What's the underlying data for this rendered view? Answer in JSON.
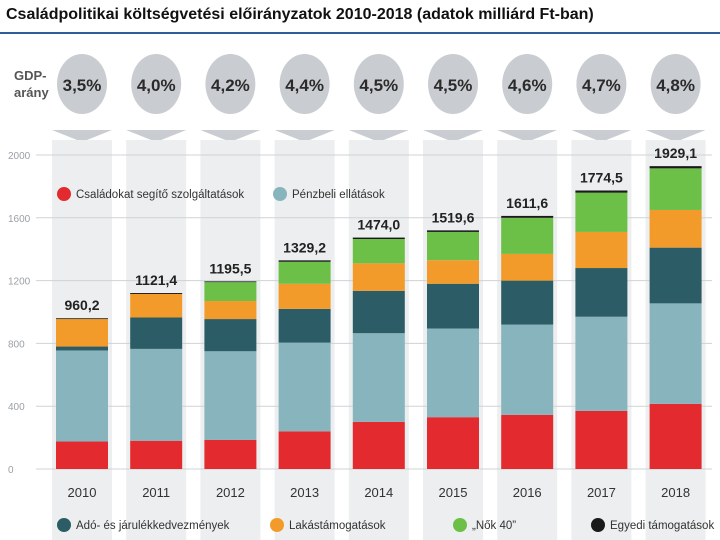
{
  "header": {
    "title": "Családpolitikai költségvetési előirányzatok  2010-2018 (adatok milliárd Ft-ban)"
  },
  "gdp": {
    "label_line1": "GDP-",
    "label_line2": "arány",
    "values": [
      "3,5%",
      "4,0%",
      "4,2%",
      "4,4%",
      "4,5%",
      "4,5%",
      "4,6%",
      "4,7%",
      "4,8%"
    ]
  },
  "colors": {
    "red": "#e32b2f",
    "teal": "#87b4bd",
    "dark": "#2c5d66",
    "orange": "#f39b2a",
    "green": "#6cbf47",
    "black": "#1a1a1a",
    "grid": "#cfd3d6",
    "pill": "#c9cdd1",
    "axis_text": "#9aa0a6",
    "column_bg": "#eceeef"
  },
  "chart_data": {
    "type": "bar",
    "stacked": true,
    "title": "Családpolitikai költségvetési előirányzatok  2010-2018 (adatok milliárd Ft-ban)",
    "xlabel": "",
    "ylabel": "",
    "ylim": [
      0,
      2000
    ],
    "yticks": [
      "0",
      "400",
      "800",
      "1200",
      "1600",
      "2000"
    ],
    "ytick_values": [
      0,
      400,
      800,
      1200,
      1600,
      2000
    ],
    "categories": [
      "2010",
      "2011",
      "2012",
      "2013",
      "2014",
      "2015",
      "2016",
      "2017",
      "2018"
    ],
    "totals": [
      960.2,
      1121.4,
      1195.5,
      1329.2,
      1474.0,
      1519.6,
      1611.6,
      1774.5,
      1929.1
    ],
    "total_labels": [
      "960,2",
      "1121,4",
      "1195,5",
      "1329,2",
      "1474,0",
      "1519,6",
      "1611,6",
      "1774,5",
      "1929,1"
    ],
    "series": [
      {
        "name": "Családokat segítő szolgáltatások",
        "color_key": "red",
        "values": [
          175,
          180,
          185,
          240,
          300,
          330,
          345,
          370,
          415
        ]
      },
      {
        "name": "Pénzbeli ellátások",
        "color_key": "teal",
        "values": [
          580,
          585,
          565,
          565,
          565,
          565,
          575,
          600,
          640
        ]
      },
      {
        "name": "Adó- és járulékkedvezmények",
        "color_key": "dark",
        "values": [
          25,
          200,
          205,
          215,
          270,
          285,
          280,
          310,
          355
        ]
      },
      {
        "name": "Lakástámogatások",
        "color_key": "orange",
        "values": [
          175,
          150,
          115,
          160,
          175,
          150,
          170,
          230,
          240
        ]
      },
      {
        "name": "„Nők 40”",
        "color_key": "green",
        "values": [
          0,
          0,
          120,
          140,
          155,
          180,
          230,
          250,
          265
        ]
      },
      {
        "name": "Egyedi támogatások",
        "color_key": "black",
        "values": [
          5,
          6,
          5,
          9,
          9,
          10,
          12,
          14,
          14
        ]
      }
    ],
    "legend_top": [
      "Családokat segítő szolgáltatások",
      "Pénzbeli ellátások"
    ],
    "legend_bottom": [
      "Adó- és járulékkedvezmények",
      "Lakástámogatások",
      "„Nők 40”",
      "Egyedi támogatások"
    ]
  }
}
